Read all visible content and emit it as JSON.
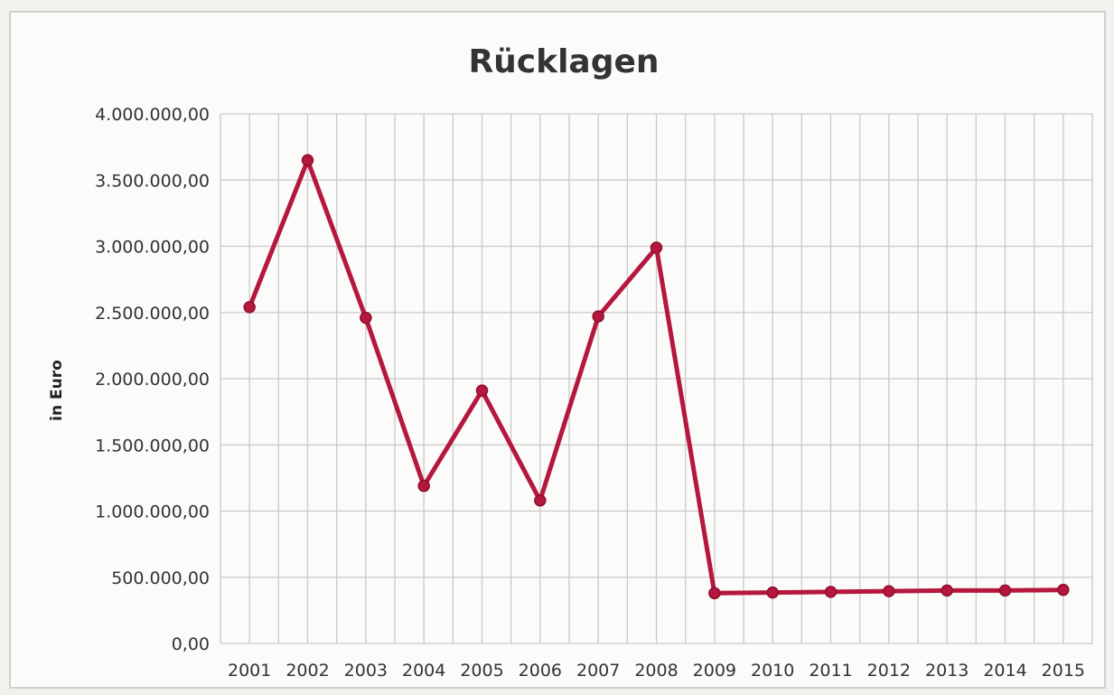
{
  "chart_data": {
    "type": "line",
    "title": "Rücklagen",
    "xlabel": "",
    "ylabel": "in Euro",
    "ylim": [
      0,
      4000000
    ],
    "y_ticks": [
      0,
      500000,
      1000000,
      1500000,
      2000000,
      2500000,
      3000000,
      3500000,
      4000000
    ],
    "y_tick_labels": [
      "0,00",
      "500.000,00",
      "1.000.000,00",
      "1.500.000,00",
      "2.000.000,00",
      "2.500.000,00",
      "3.000.000,00",
      "3.500.000,00",
      "4.000.000,00"
    ],
    "categories": [
      "2001",
      "2002",
      "2003",
      "2004",
      "2005",
      "2006",
      "2007",
      "2008",
      "2009",
      "2010",
      "2011",
      "2012",
      "2013",
      "2014",
      "2015"
    ],
    "series": [
      {
        "name": "",
        "values": [
          2540000,
          3650000,
          2460000,
          1190000,
          1910000,
          1080000,
          2470000,
          2990000,
          380000,
          385000,
          390000,
          395000,
          400000,
          400000,
          405000
        ]
      }
    ],
    "grid": true,
    "legend": "none",
    "line_color": "#b5173e",
    "marker_color": "#b5173e"
  }
}
